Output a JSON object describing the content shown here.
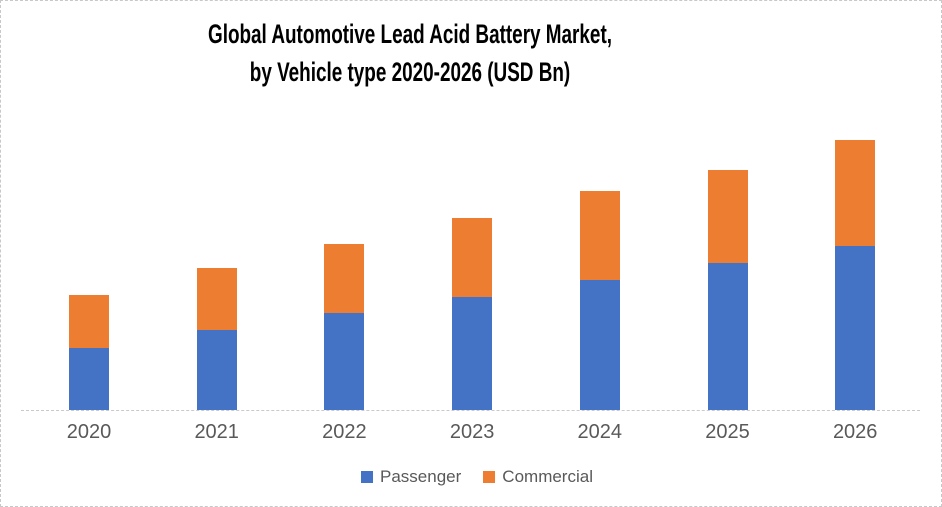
{
  "title": {
    "line1": "Global Automotive Lead Acid Battery Market,",
    "line2": "by Vehicle type 2020-2026 (USD Bn)"
  },
  "colors": {
    "passenger": "#4472C4",
    "commercial": "#ED7D31",
    "title_text": "#000000",
    "axis_text": "#595959",
    "axis_line": "#C9C9C9",
    "frame_border": "#C8C8C8",
    "background": "#FFFFFF"
  },
  "chart_data": {
    "type": "bar",
    "stacked": true,
    "title": "Global Automotive Lead Acid Battery Market, by Vehicle type 2020-2026 (USD Bn)",
    "xlabel": "",
    "ylabel": "",
    "categories": [
      "2020",
      "2021",
      "2022",
      "2023",
      "2024",
      "2025",
      "2026"
    ],
    "series": [
      {
        "name": "Passenger",
        "color": "#4472C4",
        "values": [
          62,
          80,
          97,
          113,
          130,
          147,
          164
        ]
      },
      {
        "name": "Commercial",
        "color": "#ED7D31",
        "values": [
          53,
          62,
          69,
          79,
          89,
          93,
          106
        ]
      }
    ],
    "stacked_totals": [
      115,
      142,
      166,
      192,
      219,
      240,
      270
    ],
    "value_axis_note": "value axis is unlabeled in the source image; values are relative bar heights (px), 2020 lowest to 2026 highest",
    "ylim": [
      0,
      300
    ],
    "grid": false,
    "legend_position": "bottom"
  },
  "legend": {
    "items": [
      {
        "label": "Passenger",
        "color": "#4472C4"
      },
      {
        "label": "Commercial",
        "color": "#ED7D31"
      }
    ]
  }
}
